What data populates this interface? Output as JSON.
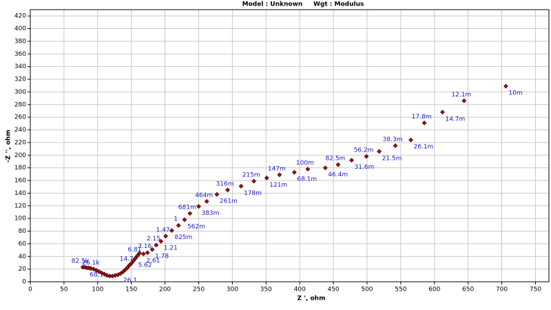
{
  "chart_data": {
    "type": "scatter",
    "title": "Model : Unknown     Wgt : Modulus",
    "x_label": "Z ', ohm",
    "y_label": "-Z '', ohm",
    "x": [
      78,
      81,
      84,
      87,
      90,
      94,
      98,
      102,
      106,
      110,
      114,
      118,
      122,
      126,
      130,
      134,
      138,
      141,
      144,
      147,
      150,
      153,
      156,
      159,
      162,
      168,
      174,
      181,
      187,
      194,
      201,
      210,
      220,
      229,
      237,
      250,
      262,
      277,
      293,
      313,
      332,
      351,
      370,
      392,
      412,
      438,
      457,
      477,
      499,
      518,
      542,
      565,
      585,
      612,
      644,
      706
    ],
    "y": [
      23,
      23,
      22,
      22,
      21,
      20,
      18,
      16,
      14,
      12,
      10,
      9,
      9,
      10,
      11,
      13,
      16,
      19,
      22,
      26,
      29,
      33,
      37,
      41,
      45,
      44,
      46,
      51,
      58,
      64,
      72,
      81,
      89,
      98,
      108,
      119,
      127,
      138,
      145,
      151,
      159,
      164,
      169,
      173,
      178,
      180,
      185,
      192,
      198,
      206,
      215,
      224,
      251,
      268,
      286,
      309
    ],
    "labels": [
      "82.5k",
      null,
      "68.1k",
      null,
      null,
      "26.1k",
      null,
      null,
      null,
      null,
      null,
      null,
      null,
      null,
      null,
      "26.1",
      null,
      null,
      null,
      "14.7",
      null,
      null,
      "5.62",
      "6.81",
      null,
      "2.61",
      "3.16",
      "1.78",
      "2.15",
      "1.21",
      "1.47",
      "825m",
      "1",
      "562m",
      "681m",
      "383m",
      "464m",
      "261m",
      "316m",
      "178m",
      "215m",
      "121m",
      "147m",
      "68.1m",
      "100m",
      "46.4m",
      "82.5m",
      "31.6m",
      "56.2m",
      "21.5m",
      "38.3m",
      "26.1m",
      "17.8m",
      "14.7m",
      "12.1m",
      "10m"
    ],
    "color": "#a01010",
    "label_color": "#2020c0",
    "xlim": [
      0,
      770
    ],
    "ylim": [
      0,
      430
    ],
    "xticks": [
      0,
      50,
      100,
      150,
      200,
      250,
      300,
      350,
      400,
      450,
      500,
      550,
      600,
      650,
      700,
      750
    ],
    "yticks": [
      0,
      20,
      40,
      60,
      80,
      100,
      120,
      140,
      160,
      180,
      200,
      220,
      240,
      260,
      280,
      300,
      320,
      340,
      360,
      380,
      400,
      420
    ],
    "grid": true
  }
}
